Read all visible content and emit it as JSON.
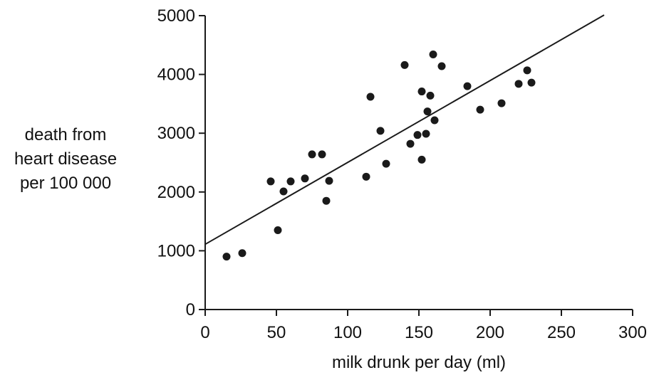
{
  "chart_data": {
    "type": "scatter",
    "title": "",
    "xlabel": "milk drunk per day (ml)",
    "ylabel_lines": [
      "death from",
      "heart disease",
      "per 100 000"
    ],
    "xlim": [
      0,
      300
    ],
    "ylim": [
      0,
      5000
    ],
    "xticks": [
      0,
      50,
      100,
      150,
      200,
      250,
      300
    ],
    "yticks": [
      0,
      1000,
      2000,
      3000,
      4000,
      5000
    ],
    "grid": false,
    "legend": "none",
    "point_color": "#1a1a1a",
    "line_color": "#1a1a1a",
    "points": [
      {
        "x": 15,
        "y": 900
      },
      {
        "x": 26,
        "y": 960
      },
      {
        "x": 46,
        "y": 2180
      },
      {
        "x": 51,
        "y": 1350
      },
      {
        "x": 55,
        "y": 2010
      },
      {
        "x": 60,
        "y": 2180
      },
      {
        "x": 70,
        "y": 2230
      },
      {
        "x": 75,
        "y": 2640
      },
      {
        "x": 82,
        "y": 2640
      },
      {
        "x": 85,
        "y": 1850
      },
      {
        "x": 87,
        "y": 2190
      },
      {
        "x": 113,
        "y": 2260
      },
      {
        "x": 116,
        "y": 3620
      },
      {
        "x": 123,
        "y": 3040
      },
      {
        "x": 127,
        "y": 2480
      },
      {
        "x": 140,
        "y": 4160
      },
      {
        "x": 144,
        "y": 2820
      },
      {
        "x": 149,
        "y": 2970
      },
      {
        "x": 152,
        "y": 2550
      },
      {
        "x": 152,
        "y": 3710
      },
      {
        "x": 155,
        "y": 2990
      },
      {
        "x": 156,
        "y": 3370
      },
      {
        "x": 158,
        "y": 3640
      },
      {
        "x": 160,
        "y": 4340
      },
      {
        "x": 161,
        "y": 3220
      },
      {
        "x": 166,
        "y": 4140
      },
      {
        "x": 184,
        "y": 3800
      },
      {
        "x": 193,
        "y": 3400
      },
      {
        "x": 208,
        "y": 3510
      },
      {
        "x": 220,
        "y": 3840
      },
      {
        "x": 226,
        "y": 4070
      },
      {
        "x": 229,
        "y": 3860
      }
    ],
    "trend_line": {
      "x": [
        0,
        280
      ],
      "y": [
        1110,
        5010
      ]
    }
  }
}
